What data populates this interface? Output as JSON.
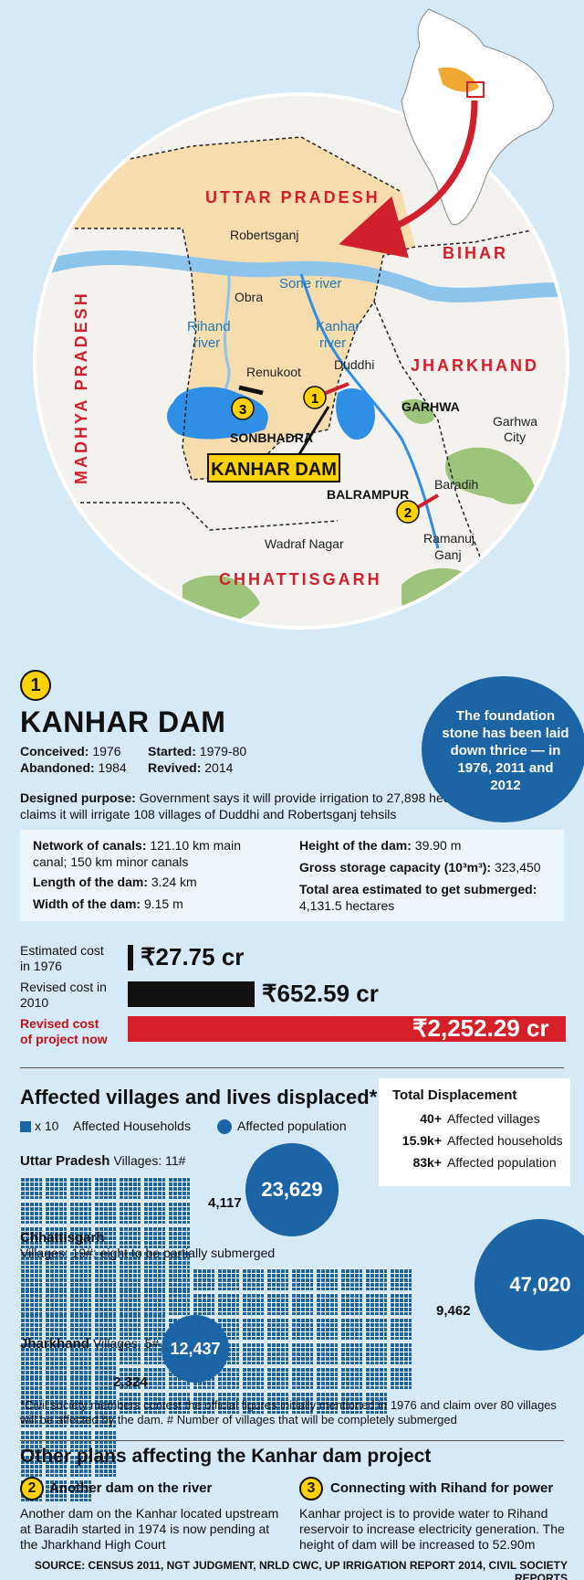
{
  "map": {
    "states": {
      "uttar_pradesh": "UTTAR PRADESH",
      "bihar": "BIHAR",
      "madhya_pradesh": "MADHYA PRADESH",
      "jharkhand": "JHARKHAND",
      "chhattisgarh": "CHHATTISGARH"
    },
    "places": {
      "robertsganj": "Robertsganj",
      "obra": "Obra",
      "renukoot": "Renukoot",
      "duddhi": "Duddhi",
      "garhwa": "GARHWA",
      "garhwa_city_1": "Garhwa",
      "garhwa_city_2": "City",
      "sonbhadra": "SONBHADRA",
      "balrampur": "BALRAMPUR",
      "baradih": "Baradih",
      "wadraf_nagar": "Wadraf Nagar",
      "ramanuj_1": "Ramanuj",
      "ramanuj_2": "Ganj"
    },
    "rivers": {
      "sone": "Sone river",
      "rihand_1": "Rihand",
      "rihand_2": "river",
      "kanhar_1": "Kanhar",
      "kanhar_2": "river"
    },
    "markers": {
      "one": "1",
      "two": "2",
      "three": "3"
    },
    "dam_label": "KANHAR DAM"
  },
  "kanhar": {
    "marker": "1",
    "title": "KANHAR DAM",
    "conceived_label": "Conceived:",
    "conceived": "1976",
    "started_label": "Started:",
    "started": "1979-80",
    "abandoned_label": "Abandoned:",
    "abandoned": "1984",
    "revived_label": "Revived:",
    "revived": "2014",
    "purpose_label": "Designed purpose:",
    "purpose_text": "Government says it will provide irrigation to 27,898 hectares, and claims it will irrigate 108 villages of Duddhi and Robertsganj tehsils",
    "foundation_note": "The foundation stone has been laid down thrice — in 1976, 2011 and 2012"
  },
  "specs": {
    "canals_label": "Network of canals:",
    "canals_value_1": "121.10 km main",
    "canals_value_2": "canal; 150 km minor canals",
    "length_label": "Length of the dam:",
    "length_value": "3.24 km",
    "width_label": "Width of the dam:",
    "width_value": "9.15 m",
    "height_label": "Height of the dam:",
    "height_value": "39.90 m",
    "storage_label": "Gross storage capacity (10³m³):",
    "storage_value": "323,450",
    "submerged_label": "Total area estimated to get submerged:",
    "submerged_value": "4,131.5 hectares"
  },
  "chart_data": {
    "type": "bar",
    "categories": [
      "Estimated cost in 1976",
      "Revised cost in 2010",
      "Revised cost of project now"
    ],
    "values": [
      27.75,
      652.59,
      2252.29
    ],
    "value_labels": [
      "₹27.75 cr",
      "₹652.59 cr",
      "₹2,252.29 cr"
    ],
    "colors": [
      "#111111",
      "#111111",
      "#d61f26"
    ]
  },
  "costs": {
    "l1a": "Estimated cost",
    "l1b": "in 1976",
    "l2a": "Revised cost in",
    "l2b": "2010",
    "l3a": "Revised cost",
    "l3b": "of project now"
  },
  "affected": {
    "title": "Affected villages and lives displaced*",
    "legend_box": "x 10",
    "legend_households": "Affected Households",
    "legend_population": "Affected population",
    "total_title": "Total Displacement",
    "total_rows": [
      {
        "value": "40+",
        "label": "Affected villages"
      },
      {
        "value": "15.9k+",
        "label": "Affected households"
      },
      {
        "value": "83k+",
        "label": "Affected population"
      }
    ],
    "up_name": "Uttar Pradesh",
    "up_villages": "Villages: 11#",
    "up_households": 4117,
    "up_households_label": "4,117",
    "up_population": 23629,
    "up_population_label": "23,629",
    "ch_name": "Chhattisgarh",
    "ch_villages": "Villages: 19#; eight to be partially submerged",
    "ch_households": 9462,
    "ch_households_label": "9,462",
    "ch_population": 47020,
    "ch_population_label": "47,020",
    "jh_name": "Jharkhand",
    "jh_villages": "Villages: 5#",
    "jh_households": 2324,
    "jh_households_label": "2,324",
    "jh_population": 12437,
    "jh_population_label": "12,437",
    "footnote": "*Civil society members contest the official figures initially mentioned in 1976 and claim over 80 villages will be affected by the dam.  # Number of villages that will be completely submerged"
  },
  "other": {
    "title": "Other plans affecting the Kanhar dam project",
    "p2_marker": "2",
    "p2_title": "Another dam on the river",
    "p2_body": "Another dam on the Kanhar located upstream at Baradih started in 1974 is now pending at the Jharkhand High Court",
    "p3_marker": "3",
    "p3_title": "Connecting with Rihand for power",
    "p3_body": "Kanhar project is to provide water to Rihand reservoir to increase electricity generation. The height of dam will be increased to 52.90m"
  },
  "source": "SOURCE: CENSUS 2011, NGT JUDGMENT, NRLD CWC, UP IRRIGATION REPORT 2014, CIVIL SOCIETY REPORTS",
  "colors": {
    "background": "#d5e9f6",
    "up_fill": "#f7dcae",
    "state_label": "#d11f2b",
    "water": "#2f8ee5",
    "forest": "#9cc47a",
    "accent_blue": "#1b64a6",
    "marker_yellow": "#ffd200",
    "cost_red": "#d61f26"
  }
}
